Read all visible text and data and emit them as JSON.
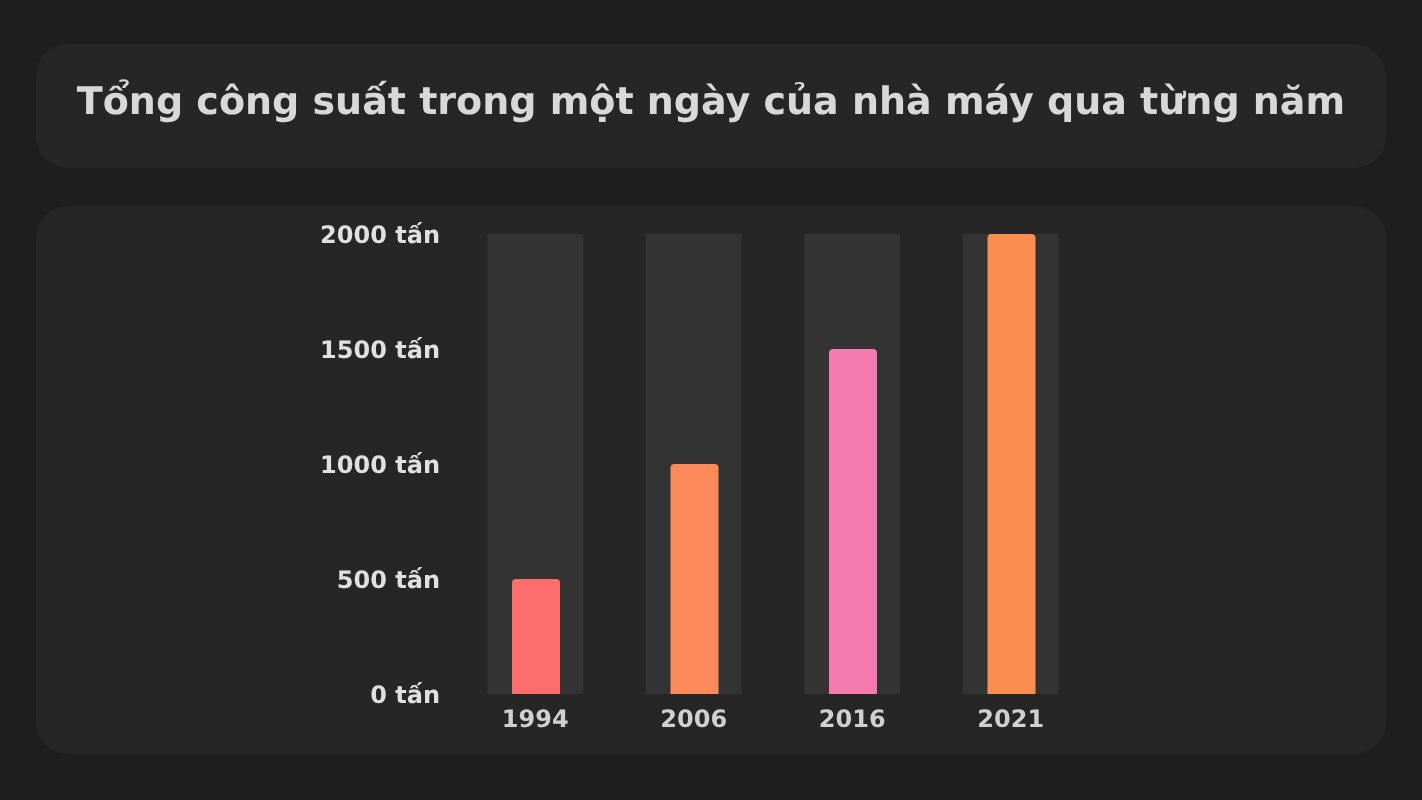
{
  "chart_data": {
    "type": "bar",
    "title": "Tổng công suất trong một ngày của nhà máy qua từng năm",
    "categories": [
      "1994",
      "2006",
      "2016",
      "2021"
    ],
    "values": [
      500,
      1000,
      1500,
      2000
    ],
    "colors": [
      "#ff6e6e",
      "#fc8a5a",
      "#f57ab0",
      "#fb8c52"
    ],
    "ylim": [
      0,
      2000
    ],
    "yticks": [
      {
        "value": 0,
        "label": "0 tấn"
      },
      {
        "value": 500,
        "label": "500 tấn"
      },
      {
        "value": 1000,
        "label": "1000 tấn"
      },
      {
        "value": 1500,
        "label": "1500 tấn"
      },
      {
        "value": 2000,
        "label": "2000 tấn"
      }
    ],
    "bands": [
      {
        "axis": "x",
        "from": "1994",
        "to": "1994",
        "color": "#333333"
      },
      {
        "axis": "x",
        "from": "2006",
        "to": "2006",
        "color": "#333333"
      },
      {
        "axis": "x",
        "from": "2016",
        "to": "2016",
        "color": "#333333"
      },
      {
        "axis": "x",
        "from": "2021",
        "to": "2021",
        "color": "#333333"
      }
    ],
    "grid": false
  }
}
